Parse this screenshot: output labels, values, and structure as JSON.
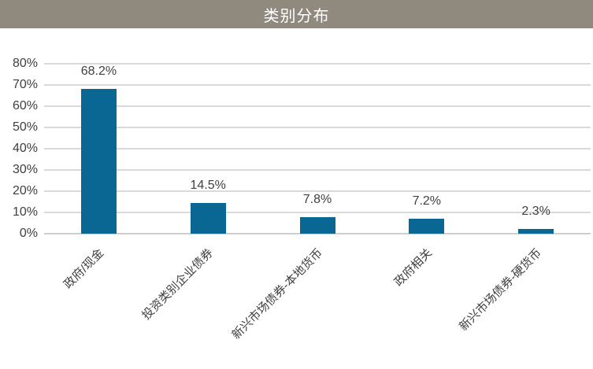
{
  "title_bar": {
    "title": "类别分布",
    "bg_color": "#8F897E",
    "text_color": "#FFFFFF"
  },
  "chart_data": {
    "type": "bar",
    "title": "类别分布",
    "categories": [
      "政府/现金",
      "投资类别企业债券",
      "新兴市场债券-本地货币",
      "政府相关",
      "新兴市场债券-硬货币"
    ],
    "values": [
      68.2,
      14.5,
      7.8,
      7.2,
      2.3
    ],
    "data_labels": [
      "68.2%",
      "14.5%",
      "7.8%",
      "7.2%",
      "2.3%"
    ],
    "xlabel": "",
    "ylabel": "",
    "ylim": [
      0,
      80
    ],
    "yticks": [
      "0%",
      "10%",
      "20%",
      "30%",
      "40%",
      "50%",
      "60%",
      "70%",
      "80%"
    ],
    "grid": true,
    "legend": false,
    "bar_color": "#0A6794",
    "gridline_color": "#D9D9D9",
    "axisline_color": "#CFCFCF",
    "label_color": "#3F3F3F"
  }
}
